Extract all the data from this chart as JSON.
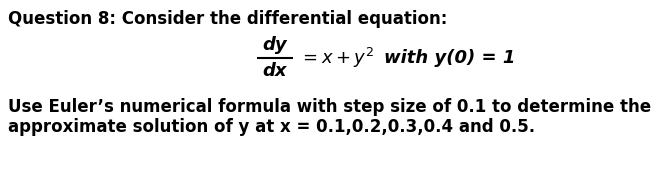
{
  "background_color": "#ffffff",
  "title_line": "Question 8: Consider the differential equation:",
  "body_line1": "Use Euler’s numerical formula with step size of 0.1 to determine the",
  "body_line2": "approximate solution of y at x = 0.1,0.2,0.3,0.4 and 0.5.",
  "title_fontsize": 12.0,
  "body_fontsize": 12.0,
  "eq_fontsize": 13.0,
  "text_color": "#000000",
  "fig_width": 6.62,
  "fig_height": 1.83,
  "dpi": 100
}
